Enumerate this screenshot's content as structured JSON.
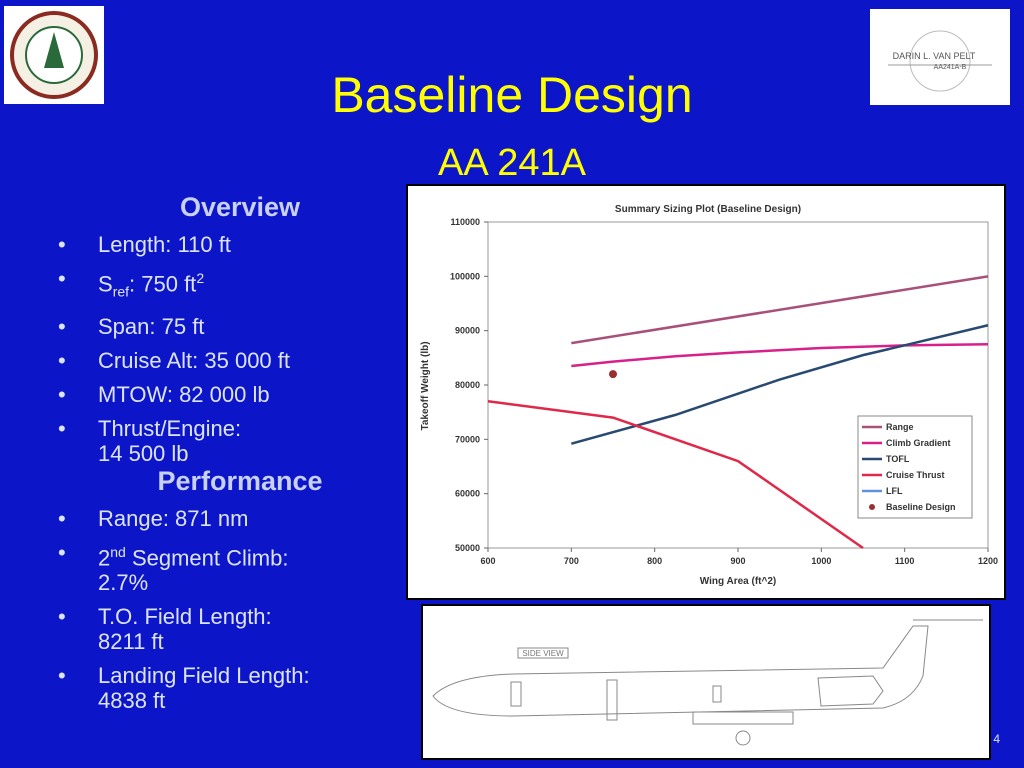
{
  "slide": {
    "title": "Baseline Design",
    "subtitle": "AA 241A",
    "overview": {
      "heading": "Overview",
      "items": [
        [
          "Length: 110 ft"
        ],
        [
          "S",
          "ref",
          ": 750 ft",
          "2"
        ],
        [
          "Span: 75 ft"
        ],
        [
          "Cruise Alt: 35 000 ft"
        ],
        [
          "MTOW: 82 000 lb"
        ],
        [
          "Thrust/Engine:",
          "14 500 lb"
        ]
      ]
    },
    "performance": {
      "heading": "Performance",
      "items": [
        [
          "Range: 871 nm"
        ],
        [
          "2",
          "nd",
          " Segment Climb:",
          "2.7%"
        ],
        [
          "T.O. Field Length:",
          "8211 ft"
        ],
        [
          "Landing Field Length:",
          "4838 ft"
        ]
      ]
    },
    "signature": [
      "DARIN L. VAN PELT",
      "AA241A-B"
    ],
    "drawing_label": "SIDE VIEW",
    "page_number": "4"
  },
  "chart_data": {
    "type": "line",
    "title": "Summary Sizing Plot (Baseline Design)",
    "x_label": "Wing Area (ft^2)",
    "y_label": "Takeoff Weight (lb)",
    "xlim": [
      600,
      1200
    ],
    "xticks": [
      600,
      700,
      800,
      900,
      1000,
      1100,
      1200
    ],
    "ylim": [
      50000,
      110000
    ],
    "yticks": [
      50000,
      60000,
      70000,
      80000,
      90000,
      100000,
      110000
    ],
    "grid": false,
    "legend": "lower right",
    "series": [
      {
        "name": "Range",
        "color": "#a8507a",
        "mode": "line",
        "x": [
          700,
          1200
        ],
        "values": [
          87700,
          100000
        ]
      },
      {
        "name": "Climb Gradient",
        "color": "#d8208a",
        "mode": "line",
        "x": [
          700,
          750,
          825,
          900,
          1000,
          1100,
          1200
        ],
        "values": [
          83500,
          84300,
          85300,
          86000,
          86800,
          87300,
          87500
        ]
      },
      {
        "name": "TOFL",
        "color": "#284a70",
        "mode": "line",
        "x": [
          700,
          825,
          950,
          1050,
          1100,
          1200
        ],
        "values": [
          69200,
          74500,
          81000,
          85500,
          87300,
          91000
        ]
      },
      {
        "name": "Cruise Thrust",
        "color": "#e02848",
        "mode": "line",
        "x": [
          600,
          750,
          900,
          1050
        ],
        "values": [
          77000,
          74000,
          66000,
          50000
        ]
      },
      {
        "name": "LFL",
        "color": "#6090e0",
        "mode": "line",
        "x": [],
        "values": []
      },
      {
        "name": "Baseline Design",
        "color": "#9b3030",
        "mode": "marker",
        "x": [
          750
        ],
        "values": [
          82000
        ]
      }
    ]
  }
}
